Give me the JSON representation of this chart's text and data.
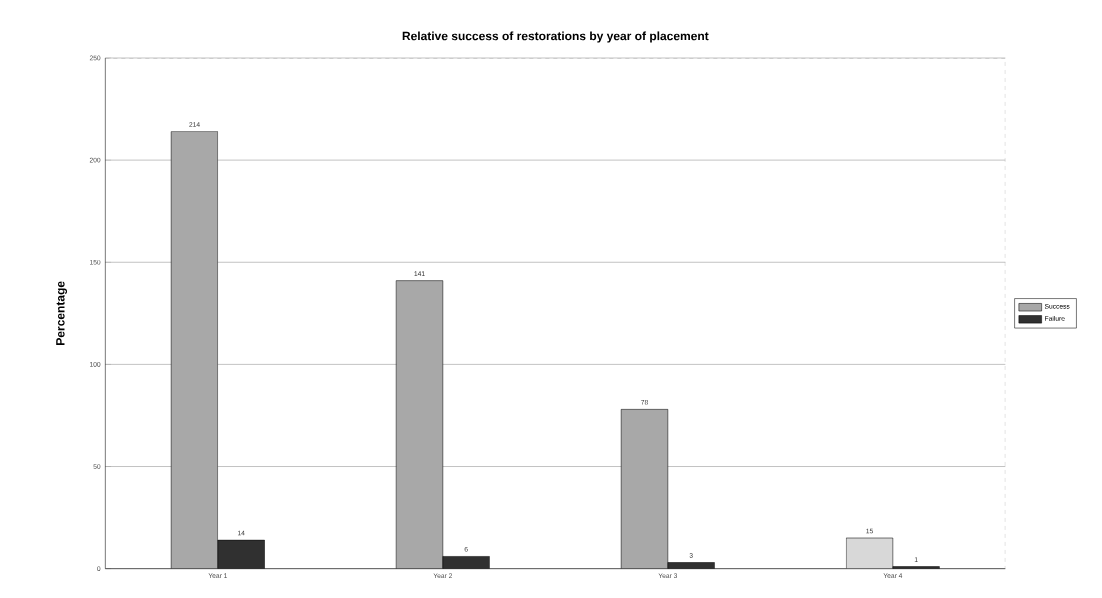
{
  "chart_data": {
    "type": "bar",
    "title": "Relative success of restorations by year of placement",
    "ylabel": "Percentage",
    "categories": [
      "Year 1",
      "Year 2",
      "Year 3",
      "Year 4"
    ],
    "series": [
      {
        "name": "Success",
        "color": "#a8a8a8",
        "colors": [
          "#a8a8a8",
          "#a8a8a8",
          "#a8a8a8",
          "#d8d8d8"
        ],
        "values": [
          214,
          141,
          78,
          15
        ]
      },
      {
        "name": "Failure",
        "color": "#303030",
        "values": [
          14,
          6,
          3,
          1
        ]
      }
    ],
    "ylim": [
      0,
      250
    ],
    "yticks": [
      0,
      50,
      100,
      150,
      200,
      250
    ],
    "grid": "y",
    "legend": "right",
    "data_labels": true
  }
}
